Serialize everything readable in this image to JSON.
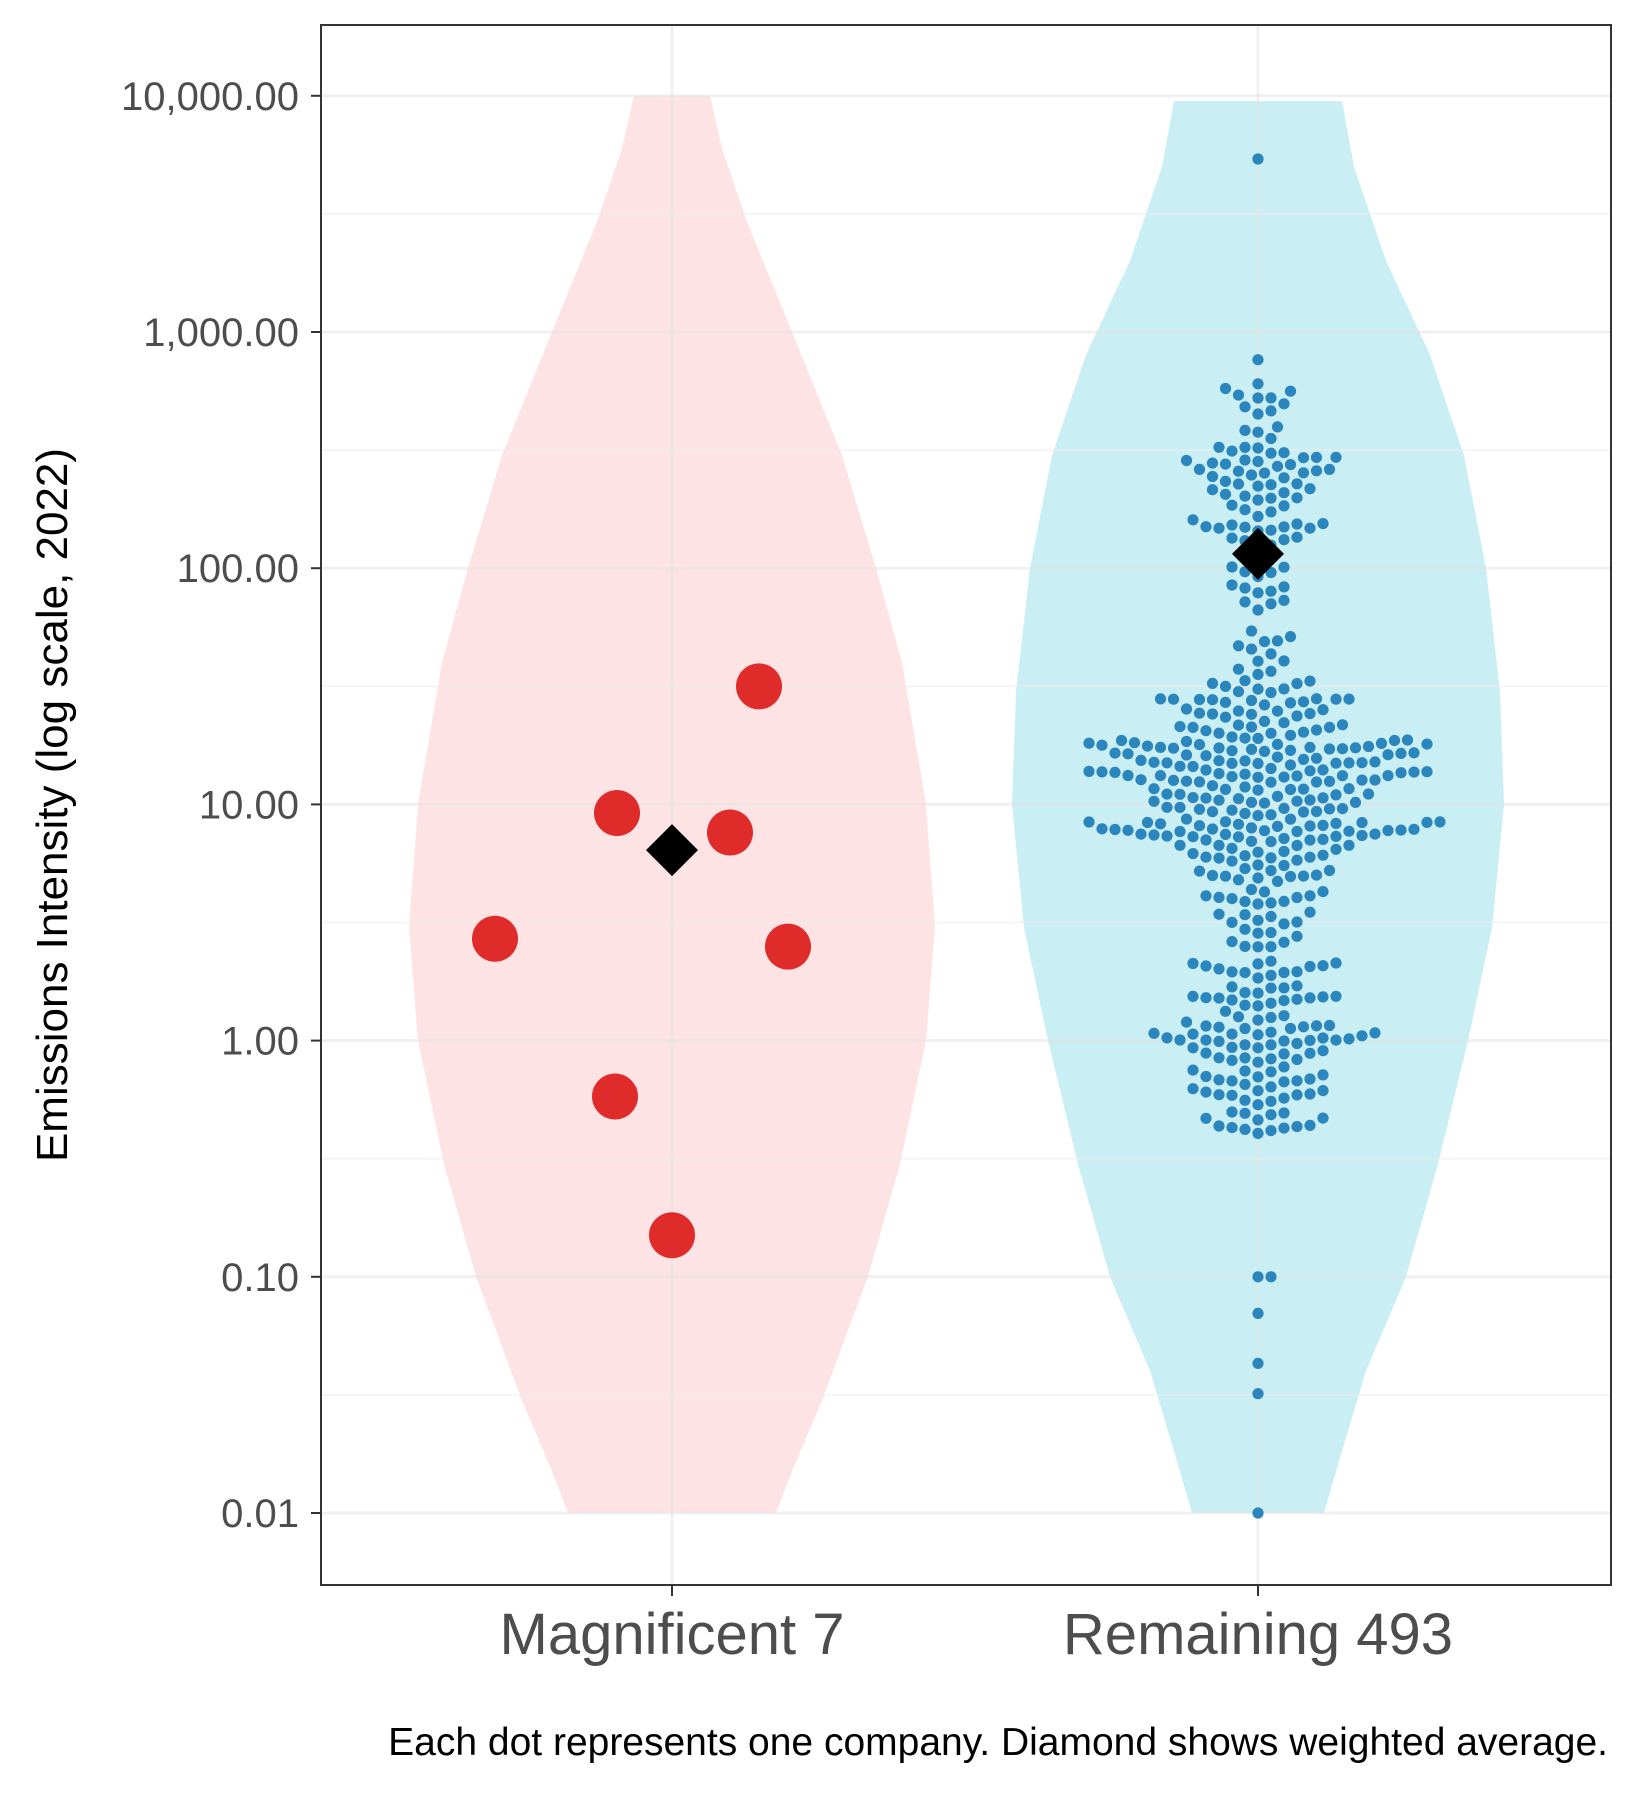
{
  "chart_data": {
    "type": "scatter",
    "subtype": "violin-beeswarm",
    "ylabel": "Emissions Intensity (log scale, 2022)",
    "xlabel": "",
    "yscale": "log10",
    "ylim": [
      0.005,
      20000
    ],
    "y_ticks": [
      {
        "value": 10000,
        "label": "10,000.00"
      },
      {
        "value": 1000,
        "label": "1,000.00"
      },
      {
        "value": 100,
        "label": "100.00"
      },
      {
        "value": 10,
        "label": "10.00"
      },
      {
        "value": 1,
        "label": "1.00"
      },
      {
        "value": 0.1,
        "label": "0.10"
      },
      {
        "value": 0.01,
        "label": "0.01"
      }
    ],
    "categories": [
      "Magnificent 7",
      "Remaining 493"
    ],
    "caption": "Each dot represents one company. Diamond shows weighted average.",
    "grid": true,
    "colors": {
      "magnificent_violin": "#fde3e3",
      "magnificent_dot": "#e02b2b",
      "remaining_violin": "#c9eef3",
      "remaining_dot": "#2a86bd",
      "diamond": "#000000"
    },
    "series": [
      {
        "name": "Magnificent 7",
        "values": [
          31.6,
          9.2,
          7.6,
          2.7,
          2.5,
          0.58,
          0.15
        ],
        "weighted_average": 6.4,
        "violin_range": [
          0.01,
          10000
        ]
      },
      {
        "name": "Remaining 493",
        "count": 493,
        "min": 0.01,
        "max": 5400,
        "weighted_average": 115,
        "violin_range": [
          0.01,
          9500
        ]
      }
    ]
  }
}
